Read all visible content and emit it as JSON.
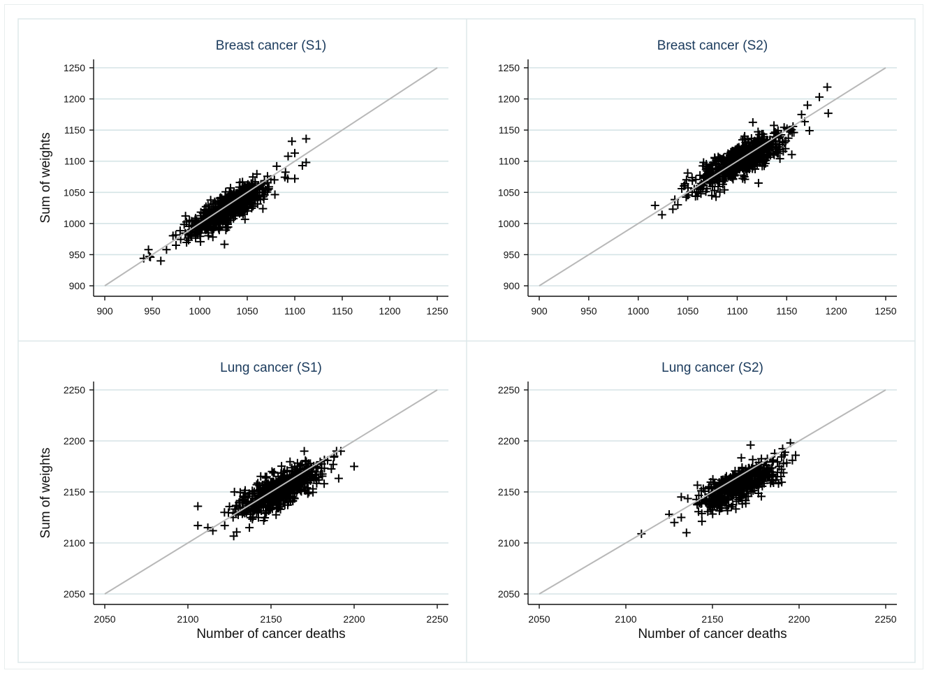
{
  "chart_data": [
    {
      "type": "scatter",
      "title": "Breast cancer (S1)",
      "xlabel": "",
      "ylabel": "Sum of weights",
      "xlim": [
        900,
        1250
      ],
      "ylim": [
        900,
        1250
      ],
      "xticks": [
        "900",
        "950",
        "1000",
        "1050",
        "1100",
        "1150",
        "1200",
        "1250"
      ],
      "yticks": [
        "900",
        "950",
        "1000",
        "1050",
        "1100",
        "1150",
        "1200",
        "1250"
      ],
      "reference_line": {
        "from": [
          900,
          900
        ],
        "to": [
          1250,
          1250
        ]
      },
      "marker": "plus",
      "grid": true,
      "cloud": {
        "center": [
          1030,
          1024
        ],
        "sd_along": 28,
        "sd_across": 9,
        "n": 600
      },
      "points": [
        [
          941,
          944
        ],
        [
          946,
          958
        ],
        [
          948,
          946
        ],
        [
          959,
          940
        ],
        [
          965,
          958
        ],
        [
          975,
          965
        ],
        [
          985,
          1012
        ],
        [
          1100,
          1072
        ],
        [
          1108,
          1093
        ],
        [
          1112,
          1098
        ],
        [
          1097,
          1132
        ],
        [
          1112,
          1136
        ],
        [
          1100,
          1113
        ],
        [
          1093,
          1108
        ]
      ]
    },
    {
      "type": "scatter",
      "title": "Breast cancer (S2)",
      "xlabel": "",
      "ylabel": "",
      "xlim": [
        900,
        1250
      ],
      "ylim": [
        900,
        1250
      ],
      "xticks": [
        "900",
        "950",
        "1000",
        "1050",
        "1100",
        "1150",
        "1200",
        "1250"
      ],
      "yticks": [
        "900",
        "950",
        "1000",
        "1050",
        "1100",
        "1150",
        "1200",
        "1250"
      ],
      "reference_line": {
        "from": [
          900,
          900
        ],
        "to": [
          1250,
          1250
        ]
      },
      "marker": "plus",
      "grid": true,
      "cloud": {
        "center": [
          1105,
          1103
        ],
        "sd_along": 30,
        "sd_across": 10,
        "n": 600
      },
      "points": [
        [
          1017,
          1029
        ],
        [
          1024,
          1014
        ],
        [
          1035,
          1023
        ],
        [
          1040,
          1030
        ],
        [
          1050,
          1081
        ],
        [
          1165,
          1175
        ],
        [
          1171,
          1190
        ],
        [
          1183,
          1203
        ],
        [
          1191,
          1219
        ],
        [
          1192,
          1177
        ],
        [
          1173,
          1149
        ]
      ]
    },
    {
      "type": "scatter",
      "title": "Lung cancer (S1)",
      "xlabel": "Number of cancer deaths",
      "ylabel": "Sum of weights",
      "xlim": [
        2050,
        2250
      ],
      "ylim": [
        2050,
        2250
      ],
      "xticks": [
        "2050",
        "2100",
        "2150",
        "2200",
        "2250"
      ],
      "yticks": [
        "2050",
        "2100",
        "2150",
        "2200",
        "2250"
      ],
      "reference_line": {
        "from": [
          2050,
          2050
        ],
        "to": [
          2250,
          2250
        ]
      },
      "marker": "plus",
      "grid": true,
      "cloud": {
        "center": [
          2155,
          2152
        ],
        "sd_along": 16,
        "sd_across": 6,
        "n": 600
      },
      "points": [
        [
          2106,
          2136
        ],
        [
          2106,
          2117
        ],
        [
          2112,
          2115
        ],
        [
          2115,
          2112
        ],
        [
          2122,
          2130
        ],
        [
          2128,
          2150
        ],
        [
          2137,
          2115
        ],
        [
          2200,
          2175
        ],
        [
          2192,
          2190
        ],
        [
          2188,
          2185
        ],
        [
          2170,
          2190
        ]
      ]
    },
    {
      "type": "scatter",
      "title": "Lung cancer (S2)",
      "xlabel": "Number of cancer deaths",
      "ylabel": "",
      "xlim": [
        2050,
        2250
      ],
      "ylim": [
        2050,
        2250
      ],
      "xticks": [
        "2050",
        "2100",
        "2150",
        "2200",
        "2250"
      ],
      "yticks": [
        "2050",
        "2100",
        "2150",
        "2200",
        "2250"
      ],
      "reference_line": {
        "from": [
          2050,
          2050
        ],
        "to": [
          2250,
          2250
        ]
      },
      "marker": "plus",
      "grid": true,
      "cloud": {
        "center": [
          2165,
          2157
        ],
        "sd_along": 15,
        "sd_across": 6,
        "n": 500
      },
      "points": [
        [
          2109,
          2109
        ],
        [
          2125,
          2128
        ],
        [
          2128,
          2120
        ],
        [
          2132,
          2145
        ],
        [
          2135,
          2110
        ],
        [
          2132,
          2125
        ],
        [
          2172,
          2196
        ],
        [
          2195,
          2198
        ],
        [
          2198,
          2186
        ],
        [
          2185,
          2180
        ]
      ]
    }
  ]
}
